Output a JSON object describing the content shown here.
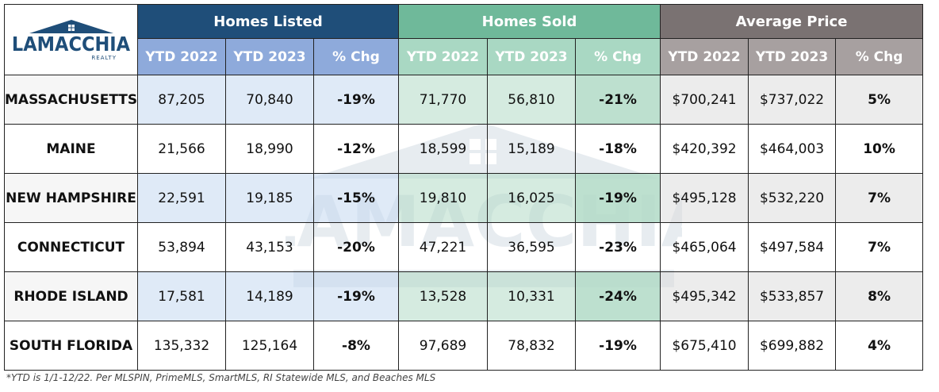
{
  "logo": {
    "name": "LAMACCHIA",
    "tagline": "REALTY"
  },
  "groups": [
    "Homes Listed",
    "Homes Sold",
    "Average Price"
  ],
  "subheaders": [
    "YTD 2022",
    "YTD 2023",
    "% Chg"
  ],
  "rows": [
    {
      "state": "MASSACHUSETTS",
      "listed": [
        "87,205",
        "70,840",
        "-19%"
      ],
      "sold": [
        "71,770",
        "56,810",
        "-21%"
      ],
      "price": [
        "$700,241",
        "$737,022",
        "5%"
      ]
    },
    {
      "state": "MAINE",
      "listed": [
        "21,566",
        "18,990",
        "-12%"
      ],
      "sold": [
        "18,599",
        "15,189",
        "-18%"
      ],
      "price": [
        "$420,392",
        "$464,003",
        "10%"
      ]
    },
    {
      "state": "NEW HAMPSHIRE",
      "listed": [
        "22,591",
        "19,185",
        "-15%"
      ],
      "sold": [
        "19,810",
        "16,025",
        "-19%"
      ],
      "price": [
        "$495,128",
        "$532,220",
        "7%"
      ]
    },
    {
      "state": "CONNECTICUT",
      "listed": [
        "53,894",
        "43,153",
        "-20%"
      ],
      "sold": [
        "47,221",
        "36,595",
        "-23%"
      ],
      "price": [
        "$465,064",
        "$497,584",
        "7%"
      ]
    },
    {
      "state": "RHODE ISLAND",
      "listed": [
        "17,581",
        "14,189",
        "-19%"
      ],
      "sold": [
        "13,528",
        "10,331",
        "-24%"
      ],
      "price": [
        "$495,342",
        "$533,857",
        "8%"
      ]
    },
    {
      "state": "SOUTH FLORIDA",
      "listed": [
        "135,332",
        "125,164",
        "-8%"
      ],
      "sold": [
        "97,689",
        "78,832",
        "-19%"
      ],
      "price": [
        "$675,410",
        "$699,882",
        "4%"
      ]
    }
  ],
  "footnote": "*YTD is 1/1-12/22. Per MLSPIN, PrimeMLS, SmartMLS, RI Statewide MLS, and Beaches MLS",
  "colors": {
    "listed": "#1f4e79",
    "sold": "#6fb99a",
    "price": "#7a7272"
  }
}
